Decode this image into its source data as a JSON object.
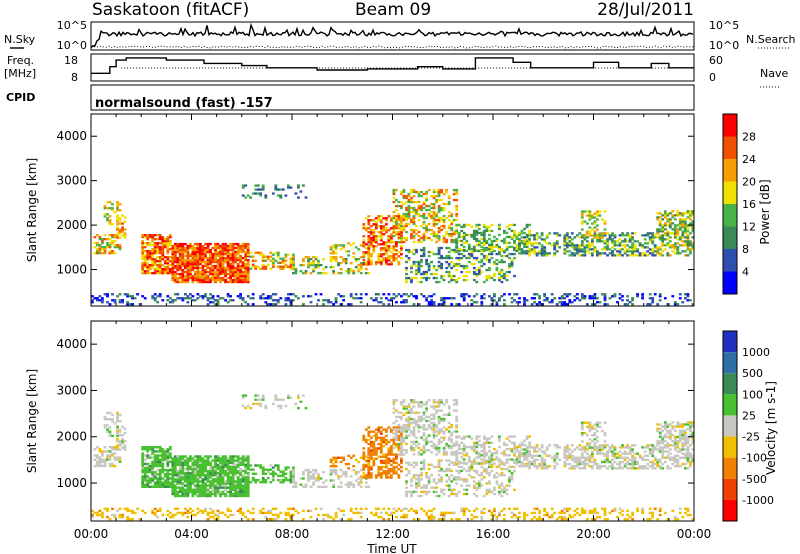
{
  "header": {
    "station": "Saskatoon (fitACF)",
    "beam": "Beam 09",
    "date": "28/Jul/2011"
  },
  "side_labels": {
    "nsky": "N.Sky",
    "nsearch": "N.Search",
    "freq": "Freq.",
    "freq_unit": "[MHz]",
    "nave": "Nave",
    "cpid": "CPID",
    "cpid_value": "normalsound (fast) -157"
  },
  "noise_panel": {
    "left_ticks": [
      "10^5",
      "10^0"
    ],
    "right_ticks": [
      "10^5",
      "10^0"
    ]
  },
  "freq_panel": {
    "left_ticks": [
      "18",
      "8"
    ],
    "right_ticks": [
      "60",
      "0"
    ],
    "freq_steps": [
      [
        0.0,
        11.5
      ],
      [
        0.75,
        14.5
      ],
      [
        1.0,
        17.5
      ],
      [
        1.4,
        18.5
      ],
      [
        3.0,
        17.5
      ],
      [
        4.5,
        16.0
      ],
      [
        6.0,
        15.0
      ],
      [
        7.0,
        14.0
      ],
      [
        9.0,
        13.0
      ],
      [
        11.0,
        13.5
      ],
      [
        13.0,
        14.5
      ],
      [
        14.0,
        13.5
      ],
      [
        15.3,
        18.5
      ],
      [
        16.8,
        16.5
      ],
      [
        17.5,
        14.0
      ],
      [
        20.0,
        16.5
      ],
      [
        21.0,
        14.0
      ],
      [
        22.3,
        16.0
      ],
      [
        23.0,
        14.0
      ],
      [
        24.0,
        14.0
      ]
    ]
  },
  "chart_data": [
    {
      "type": "heatmap",
      "title": "Power",
      "ylabel": "Slant Range [km]",
      "ylim": [
        180,
        4500
      ],
      "yticks": [
        1000,
        2000,
        3000,
        4000
      ],
      "colorbar": {
        "label": "Power [dB]",
        "ticks": [
          "4",
          "8",
          "12",
          "16",
          "20",
          "24",
          "28"
        ],
        "colors": [
          "#0000ff",
          "#2f4fb0",
          "#3a8a58",
          "#49b34a",
          "#f0e000",
          "#f5a000",
          "#f05000",
          "#ff0000"
        ]
      }
    },
    {
      "type": "heatmap",
      "title": "Velocity",
      "ylabel": "Slant Range [km]",
      "ylim": [
        180,
        4500
      ],
      "yticks": [
        1000,
        2000,
        3000,
        4000
      ],
      "colorbar": {
        "label": "Velocity [m s-1]",
        "ticks": [
          "1000",
          "500",
          "100",
          "25",
          "-25",
          "-100",
          "-500",
          "-1000"
        ],
        "colors": [
          "#2030c0",
          "#2f6fa8",
          "#3a8a58",
          "#49c030",
          "#c8c8c0",
          "#f0c000",
          "#f08000",
          "#f04000",
          "#ff0000"
        ]
      }
    }
  ],
  "xaxis": {
    "label": "Time UT",
    "ticks": [
      "00:00",
      "04:00",
      "08:00",
      "12:00",
      "16:00",
      "20:00",
      "00:00"
    ]
  }
}
